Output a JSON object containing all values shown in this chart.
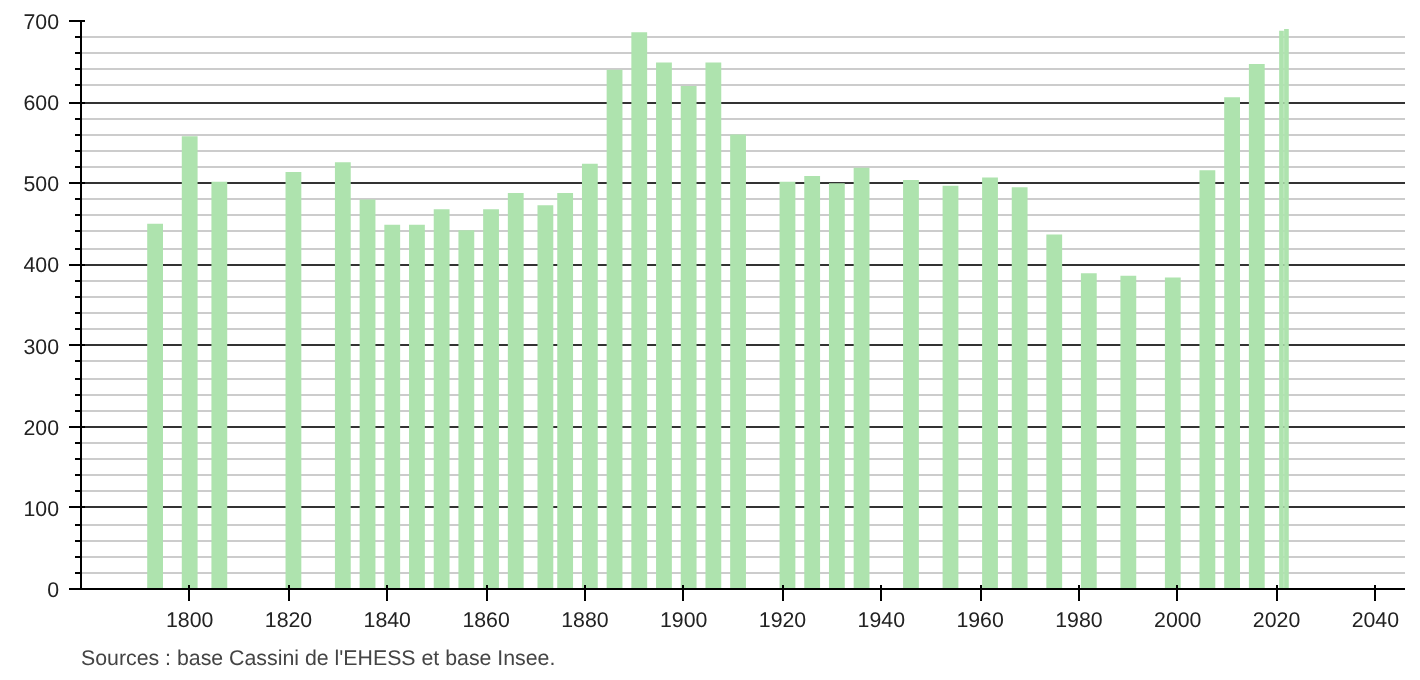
{
  "chart_data": {
    "type": "bar",
    "color": "#aee3ae",
    "x": [
      1793,
      1800,
      1806,
      1821,
      1831,
      1836,
      1841,
      1846,
      1851,
      1856,
      1861,
      1866,
      1872,
      1876,
      1881,
      1886,
      1891,
      1896,
      1901,
      1906,
      1911,
      1921,
      1926,
      1931,
      1936,
      1946,
      1954,
      1962,
      1968,
      1975,
      1982,
      1990,
      1999,
      2006,
      2011,
      2016,
      2021,
      2022
    ],
    "values": [
      450,
      558,
      502,
      514,
      526,
      480,
      449,
      449,
      468,
      442,
      468,
      488,
      473,
      488,
      524,
      640,
      686,
      649,
      620,
      649,
      560,
      502,
      509,
      500,
      519,
      504,
      497,
      507,
      495,
      437,
      389,
      386,
      384,
      516,
      606,
      647,
      688,
      690
    ],
    "xlim": [
      1778,
      2046
    ],
    "xticks": [
      1800,
      1820,
      1840,
      1860,
      1880,
      1900,
      1920,
      1940,
      1960,
      1980,
      2000,
      2020,
      2040
    ],
    "ylim": [
      0,
      700
    ],
    "yticks": [
      0,
      100,
      200,
      300,
      400,
      500,
      600,
      700
    ],
    "grid": "y",
    "annotations": [
      "Sources : base Cassini de l'EHESS et base Insee."
    ]
  }
}
